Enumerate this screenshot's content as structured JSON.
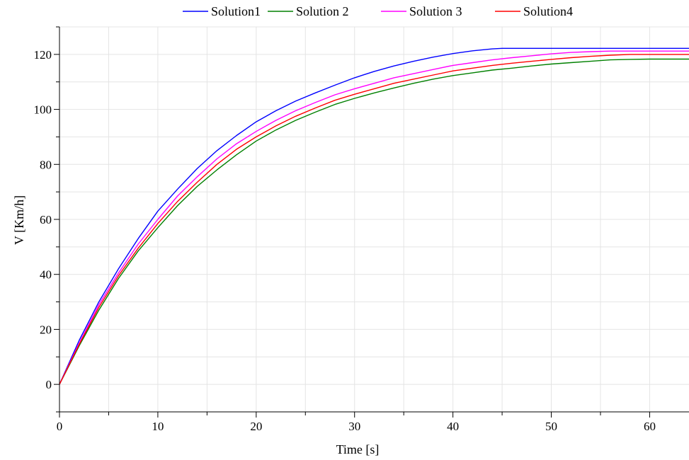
{
  "chart_data": {
    "type": "line",
    "xlabel": "Time [s]",
    "ylabel": "V [Km/h]",
    "xlim": [
      0,
      64
    ],
    "ylim": [
      -10,
      130
    ],
    "xticks": [
      0,
      10,
      20,
      30,
      40,
      50,
      60
    ],
    "yticks": [
      0,
      20,
      40,
      60,
      80,
      100,
      120
    ],
    "x_minor_step": 5,
    "y_minor_step": 10,
    "grid": true,
    "legend_position": "top",
    "series": [
      {
        "name": "Solution1",
        "color": "#0000ff",
        "x": [
          0,
          2,
          4,
          6,
          8,
          10,
          12,
          14,
          16,
          18,
          20,
          22,
          24,
          26,
          28,
          30,
          32,
          34,
          36,
          38,
          40,
          42,
          44,
          45,
          50,
          55,
          60,
          64
        ],
        "y": [
          0,
          16,
          30,
          42,
          53,
          63,
          71,
          78.5,
          85,
          90.5,
          95.5,
          99.5,
          103,
          106,
          108.8,
          111.5,
          113.8,
          115.8,
          117.5,
          119,
          120.3,
          121.3,
          122,
          122.2,
          122.2,
          122.2,
          122.2,
          122.2
        ]
      },
      {
        "name": "Solution 2",
        "color": "#008000",
        "x": [
          0,
          2,
          4,
          6,
          8,
          10,
          12,
          14,
          16,
          18,
          20,
          22,
          24,
          26,
          28,
          30,
          32,
          34,
          36,
          38,
          40,
          42,
          44,
          46,
          48,
          50,
          52,
          54,
          56,
          58,
          60,
          64
        ],
        "y": [
          0,
          14,
          27,
          38.5,
          48.5,
          57,
          65,
          72,
          78,
          83.5,
          88.5,
          92.5,
          96,
          99,
          101.8,
          104,
          106,
          107.8,
          109.5,
          111,
          112.3,
          113.3,
          114.3,
          115,
          115.8,
          116.5,
          117,
          117.5,
          118,
          118.2,
          118.3,
          118.3
        ]
      },
      {
        "name": "Solution 3",
        "color": "#ff00ff",
        "x": [
          0,
          2,
          4,
          6,
          8,
          10,
          12,
          14,
          16,
          18,
          20,
          22,
          24,
          26,
          28,
          30,
          32,
          34,
          36,
          38,
          40,
          42,
          44,
          46,
          48,
          50,
          52,
          54,
          56,
          60,
          64
        ],
        "y": [
          0,
          15,
          29,
          40.5,
          51,
          60,
          68.5,
          75.5,
          82,
          87.5,
          92,
          96,
          99.5,
          102.5,
          105.3,
          107.5,
          109.5,
          111.5,
          113,
          114.5,
          116,
          117,
          118,
          118.8,
          119.5,
          120.2,
          120.7,
          121,
          121.2,
          121.2,
          121.2
        ]
      },
      {
        "name": "Solution4",
        "color": "#ff0000",
        "x": [
          0,
          2,
          4,
          6,
          8,
          10,
          12,
          14,
          16,
          18,
          20,
          22,
          24,
          26,
          28,
          30,
          32,
          34,
          36,
          38,
          40,
          42,
          44,
          46,
          48,
          50,
          52,
          54,
          56,
          58,
          60,
          64
        ],
        "y": [
          0,
          14.5,
          28,
          39.5,
          49.5,
          58.5,
          66.5,
          73.5,
          80,
          85.5,
          90,
          94,
          97.5,
          100.5,
          103.3,
          105.5,
          107.5,
          109.5,
          111,
          112.5,
          114,
          115,
          116,
          116.8,
          117.5,
          118.2,
          118.8,
          119.3,
          119.7,
          120,
          120,
          120
        ]
      }
    ]
  }
}
